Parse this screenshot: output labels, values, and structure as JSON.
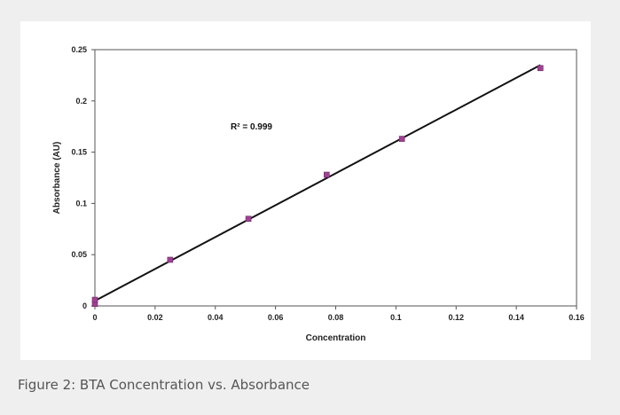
{
  "caption": "Figure 2: BTA Concentration vs. Absorbance",
  "chart_data": {
    "type": "scatter",
    "title": "",
    "xlabel": "Concentration",
    "ylabel": "Absorbance (AU)",
    "xlim": [
      0,
      0.16
    ],
    "ylim": [
      0,
      0.25
    ],
    "x_ticks": [
      "0",
      "0.02",
      "0.04",
      "0.06",
      "0.08",
      "0.1",
      "0.12",
      "0.14",
      "0.16"
    ],
    "y_ticks": [
      "0",
      "0.05",
      "0.1",
      "0.15",
      "0.2",
      "0.25"
    ],
    "grid": false,
    "legend": "none",
    "point_color": "#a23f95",
    "line_color": "#111111",
    "points": [
      {
        "x": 0,
        "y": 0.002
      },
      {
        "x": 0,
        "y": 0.006
      },
      {
        "x": 0.025,
        "y": 0.045
      },
      {
        "x": 0.051,
        "y": 0.085
      },
      {
        "x": 0.077,
        "y": 0.128
      },
      {
        "x": 0.102,
        "y": 0.163
      },
      {
        "x": 0.148,
        "y": 0.232
      }
    ],
    "trendline": {
      "type": "linear",
      "from": {
        "x": 0,
        "y": 0.005
      },
      "to": {
        "x": 0.148,
        "y": 0.235
      }
    },
    "annotation": "R² = 0.999"
  }
}
